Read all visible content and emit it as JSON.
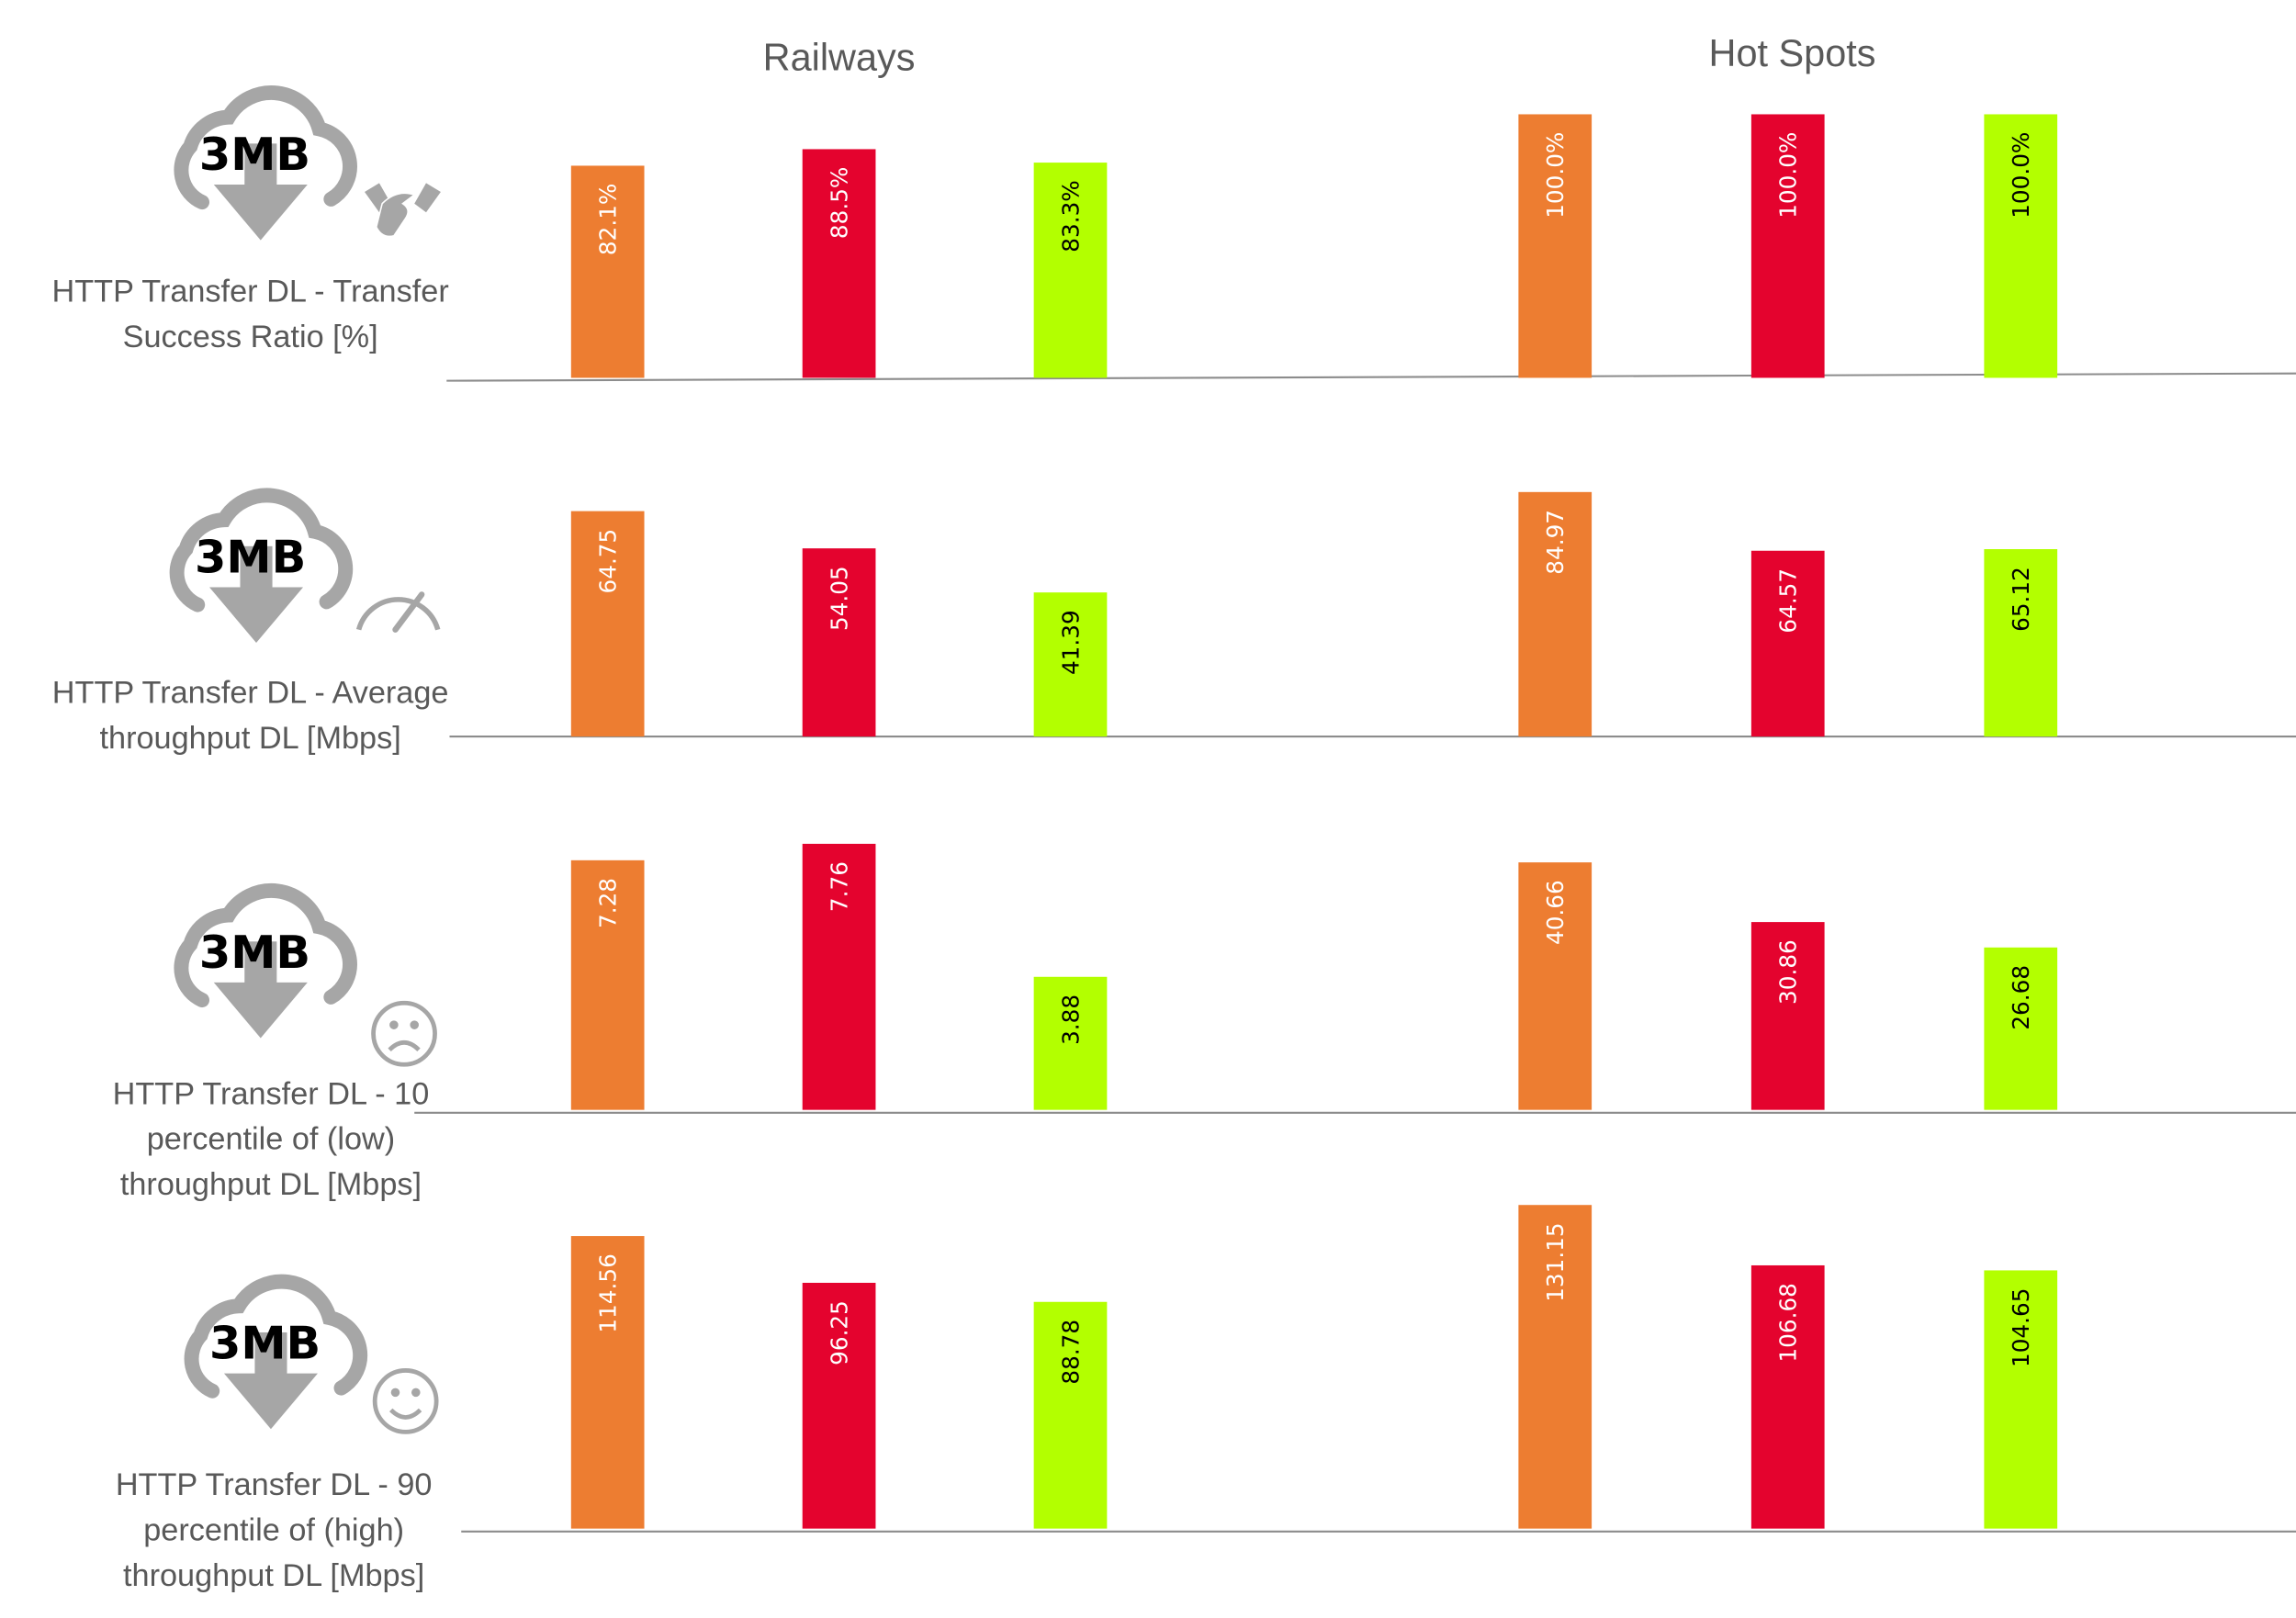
{
  "chart_data": {
    "type": "bar",
    "groups": [
      "Railways",
      "Hot Spots"
    ],
    "bar_colors": [
      "#ED7D31",
      "#E4032E",
      "#B3FF00"
    ],
    "label_colors": [
      "#FFFFFF",
      "#FFFFFF",
      "#000000"
    ],
    "grid": false,
    "rows": [
      {
        "title_lines": [
          "HTTP Transfer DL - Transfer",
          "Success Ratio [%]"
        ],
        "icon_text": "3MB",
        "icon": "cloud-download-icon",
        "badge_icon": "handshake-icon",
        "panels": [
          {
            "group": "Railways",
            "values": [
              82.1,
              88.5,
              83.3
            ],
            "labels": [
              "82.1%",
              "88.5%",
              "83.3%"
            ],
            "ylim": [
              0,
              102
            ]
          },
          {
            "group": "Hot Spots",
            "values": [
              100.0,
              100.0,
              100.0
            ],
            "labels": [
              "100.0%",
              "100.0%",
              "100.0%"
            ],
            "ylim": [
              0,
              100
            ]
          }
        ]
      },
      {
        "title_lines": [
          "HTTP Transfer DL - Average",
          "throughput DL  [Mbps]"
        ],
        "icon_text": "3MB",
        "icon": "cloud-download-icon",
        "badge_icon": "speedometer-icon",
        "panels": [
          {
            "group": "Railways",
            "values": [
              64.75,
              54.05,
              41.39
            ],
            "labels": [
              "64.75",
              "54.05",
              "41.39"
            ],
            "ylim": [
              0,
              71.5
            ]
          },
          {
            "group": "Hot Spots",
            "values": [
              84.97,
              64.57,
              65.12
            ],
            "labels": [
              "84.97",
              "64.57",
              "65.12"
            ],
            "ylim": [
              0,
              86.5
            ]
          }
        ]
      },
      {
        "title_lines": [
          "HTTP Transfer DL - 10",
          "percentile of (low)",
          "throughput DL [Mbps]"
        ],
        "icon_text": "3MB",
        "icon": "cloud-download-icon",
        "badge_icon": "sad-face-icon",
        "panels": [
          {
            "group": "Railways",
            "values": [
              7.28,
              7.76,
              3.88
            ],
            "labels": [
              "7.28",
              "7.76",
              "3.88"
            ],
            "ylim": [
              0,
              7.9
            ]
          },
          {
            "group": "Hot Spots",
            "values": [
              40.66,
              30.86,
              26.68
            ],
            "labels": [
              "40.66",
              "30.86",
              "26.68"
            ],
            "ylim": [
              0,
              44.5
            ]
          }
        ]
      },
      {
        "title_lines": [
          "HTTP Transfer DL - 90",
          "percentile of (high)",
          "throughput DL [Mbps]"
        ],
        "icon_text": "3MB",
        "icon": "cloud-download-icon",
        "badge_icon": "smiley-face-icon",
        "panels": [
          {
            "group": "Railways",
            "values": [
              114.56,
              96.25,
              88.78
            ],
            "labels": [
              "114.56",
              "96.25",
              "88.78"
            ],
            "ylim": [
              0,
              129
            ]
          },
          {
            "group": "Hot Spots",
            "values": [
              131.15,
              106.68,
              104.65
            ],
            "labels": [
              "131.15",
              "106.68",
              "104.65"
            ],
            "ylim": [
              0,
              133.5
            ]
          }
        ]
      }
    ]
  }
}
